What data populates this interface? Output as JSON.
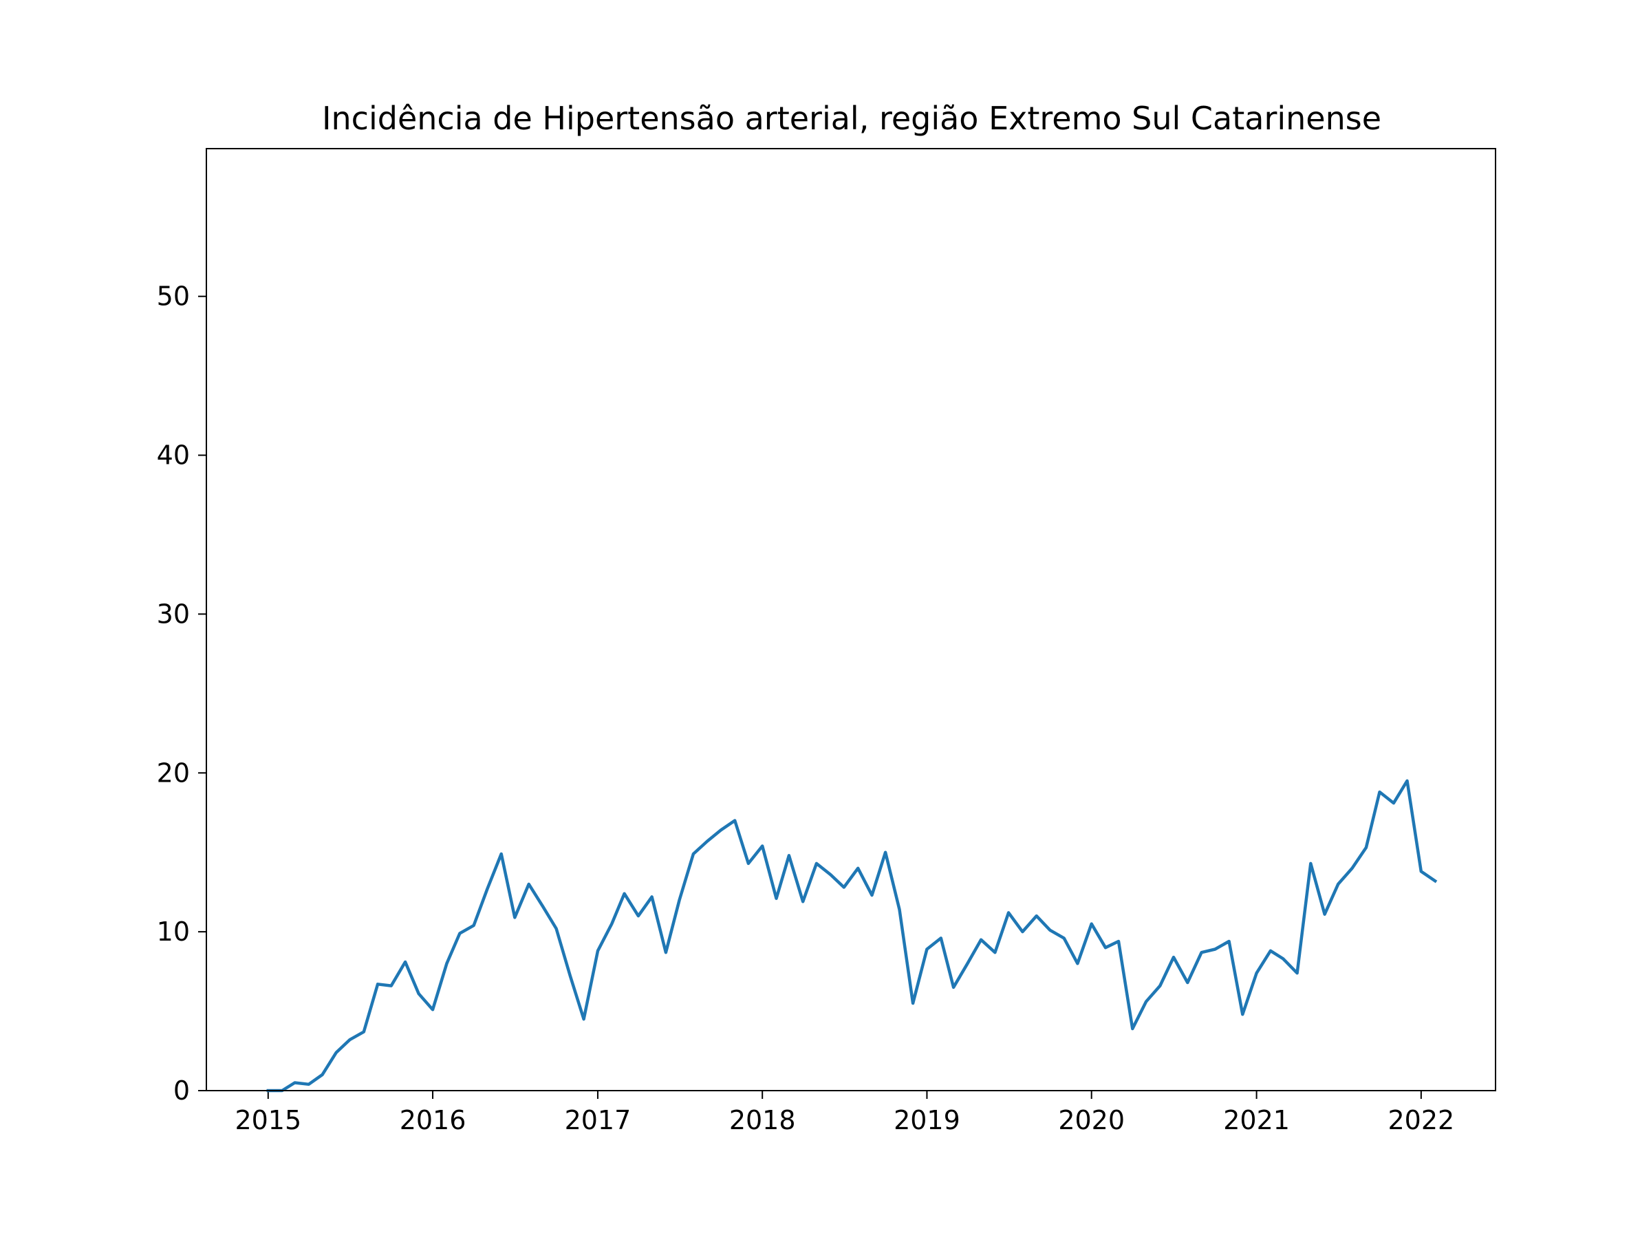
{
  "chart_data": {
    "type": "line",
    "title": "Incidência de Hipertensão arterial, região Extremo Sul Catarinense",
    "xlabel": "",
    "ylabel": "",
    "x_axis": {
      "kind": "date",
      "range": [
        "2014-08-17",
        "2022-06-15"
      ],
      "ticks": [
        {
          "value": "2015-01-01",
          "label": "2015"
        },
        {
          "value": "2016-01-01",
          "label": "2016"
        },
        {
          "value": "2017-01-01",
          "label": "2017"
        },
        {
          "value": "2018-01-01",
          "label": "2018"
        },
        {
          "value": "2019-01-01",
          "label": "2019"
        },
        {
          "value": "2020-01-01",
          "label": "2020"
        },
        {
          "value": "2021-01-01",
          "label": "2021"
        },
        {
          "value": "2022-01-01",
          "label": "2022"
        }
      ]
    },
    "y_axis": {
      "range": [
        0,
        59.3
      ],
      "ticks": [
        {
          "value": 0,
          "label": "0"
        },
        {
          "value": 10,
          "label": "10"
        },
        {
          "value": 20,
          "label": "20"
        },
        {
          "value": 30,
          "label": "30"
        },
        {
          "value": 40,
          "label": "40"
        },
        {
          "value": 50,
          "label": "50"
        }
      ]
    },
    "grid": false,
    "legend": "none",
    "colors": {
      "line": "#1f77b4",
      "axes": "#000000",
      "background": "#ffffff"
    },
    "series": [
      {
        "color": "#1f77b4",
        "points": [
          [
            "2015-01-01",
            0
          ],
          [
            "2015-02-01",
            0
          ],
          [
            "2015-03-01",
            0.5
          ],
          [
            "2015-04-01",
            0.4
          ],
          [
            "2015-05-01",
            1.0
          ],
          [
            "2015-06-01",
            2.4
          ],
          [
            "2015-07-01",
            3.2
          ],
          [
            "2015-08-01",
            3.7
          ],
          [
            "2015-09-01",
            6.7
          ],
          [
            "2015-10-01",
            6.6
          ],
          [
            "2015-11-01",
            8.1
          ],
          [
            "2015-12-01",
            6.1
          ],
          [
            "2016-01-01",
            5.1
          ],
          [
            "2016-02-01",
            8.0
          ],
          [
            "2016-03-01",
            9.9
          ],
          [
            "2016-04-01",
            10.4
          ],
          [
            "2016-05-01",
            12.7
          ],
          [
            "2016-06-01",
            14.9
          ],
          [
            "2016-07-01",
            10.9
          ],
          [
            "2016-08-01",
            13.0
          ],
          [
            "2016-09-01",
            11.6
          ],
          [
            "2016-10-01",
            10.2
          ],
          [
            "2016-11-01",
            7.2
          ],
          [
            "2016-12-01",
            4.5
          ],
          [
            "2017-01-01",
            8.8
          ],
          [
            "2017-02-01",
            10.5
          ],
          [
            "2017-03-01",
            12.4
          ],
          [
            "2017-04-01",
            11.0
          ],
          [
            "2017-05-01",
            12.2
          ],
          [
            "2017-06-01",
            8.7
          ],
          [
            "2017-07-01",
            12.0
          ],
          [
            "2017-08-01",
            14.9
          ],
          [
            "2017-09-01",
            15.7
          ],
          [
            "2017-10-01",
            16.4
          ],
          [
            "2017-11-01",
            17.0
          ],
          [
            "2017-12-01",
            14.3
          ],
          [
            "2018-01-01",
            15.4
          ],
          [
            "2018-02-01",
            12.1
          ],
          [
            "2018-03-01",
            14.8
          ],
          [
            "2018-04-01",
            11.9
          ],
          [
            "2018-05-01",
            14.3
          ],
          [
            "2018-06-01",
            13.6
          ],
          [
            "2018-07-01",
            12.8
          ],
          [
            "2018-08-01",
            14.0
          ],
          [
            "2018-09-01",
            12.3
          ],
          [
            "2018-10-01",
            15.0
          ],
          [
            "2018-11-01",
            11.4
          ],
          [
            "2018-12-01",
            5.5
          ],
          [
            "2019-01-01",
            8.9
          ],
          [
            "2019-02-01",
            9.6
          ],
          [
            "2019-03-01",
            6.5
          ],
          [
            "2019-04-01",
            8.0
          ],
          [
            "2019-05-01",
            9.5
          ],
          [
            "2019-06-01",
            8.7
          ],
          [
            "2019-07-01",
            11.2
          ],
          [
            "2019-08-01",
            10.0
          ],
          [
            "2019-09-01",
            11.0
          ],
          [
            "2019-10-01",
            10.1
          ],
          [
            "2019-11-01",
            9.6
          ],
          [
            "2019-12-01",
            8.0
          ],
          [
            "2020-01-01",
            10.5
          ],
          [
            "2020-02-01",
            9.0
          ],
          [
            "2020-03-01",
            9.4
          ],
          [
            "2020-04-01",
            3.9
          ],
          [
            "2020-05-01",
            5.6
          ],
          [
            "2020-06-01",
            6.6
          ],
          [
            "2020-07-01",
            8.4
          ],
          [
            "2020-08-01",
            6.8
          ],
          [
            "2020-09-01",
            8.7
          ],
          [
            "2020-10-01",
            8.9
          ],
          [
            "2020-11-01",
            9.4
          ],
          [
            "2020-12-01",
            4.8
          ],
          [
            "2021-01-01",
            7.4
          ],
          [
            "2021-02-01",
            8.8
          ],
          [
            "2021-03-01",
            8.3
          ],
          [
            "2021-04-01",
            7.4
          ],
          [
            "2021-05-01",
            14.3
          ],
          [
            "2021-06-01",
            11.1
          ],
          [
            "2021-07-01",
            13.0
          ],
          [
            "2021-08-01",
            14.0
          ],
          [
            "2021-09-01",
            15.3
          ],
          [
            "2021-10-01",
            18.8
          ],
          [
            "2021-11-01",
            18.1
          ],
          [
            "2021-12-01",
            19.5
          ],
          [
            "2022-01-01",
            13.8
          ],
          [
            "2022-02-01",
            13.2
          ]
        ]
      }
    ]
  }
}
